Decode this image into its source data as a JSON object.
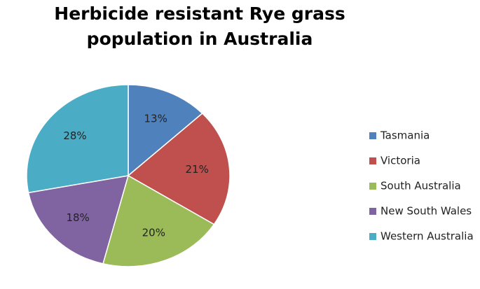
{
  "chart_data": {
    "type": "pie",
    "title": "Herbicide resistant Rye grass population in Australia",
    "categories": [
      "Tasmania",
      "Victoria",
      "South Australia",
      "New South Wales",
      "Western Australia"
    ],
    "values": [
      13,
      21,
      20,
      18,
      28
    ],
    "value_labels": [
      "13%",
      "21%",
      "20%",
      "18%",
      "28%"
    ],
    "colors": [
      "#4f81bd",
      "#c0504d",
      "#9bbb59",
      "#8064a2",
      "#4bacc6"
    ],
    "legend": "right"
  }
}
